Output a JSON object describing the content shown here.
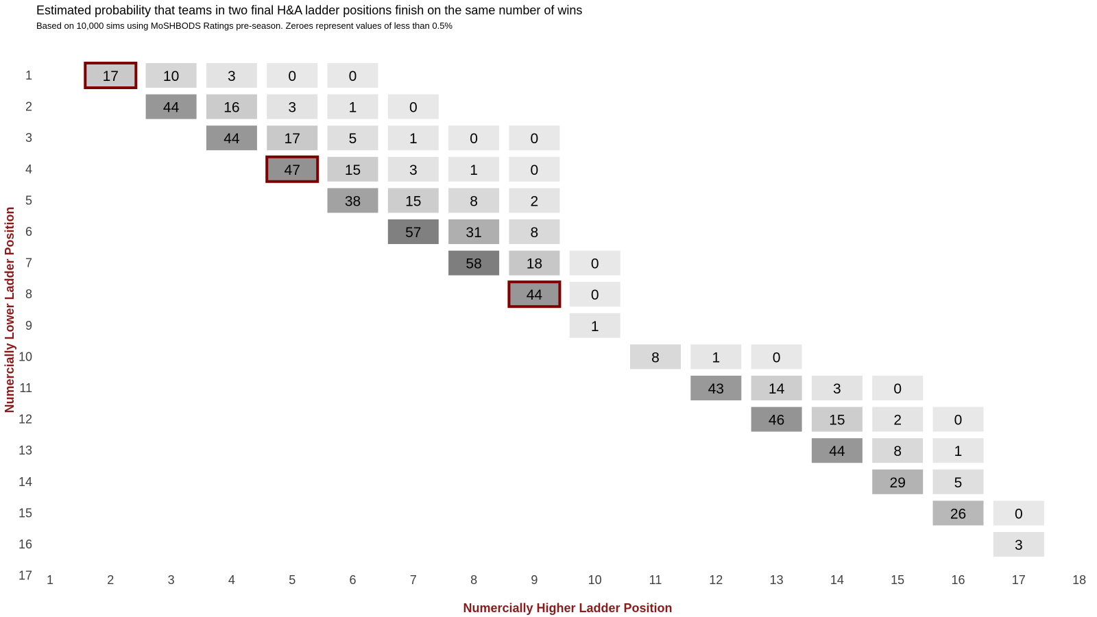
{
  "chart_data": {
    "type": "heatmap",
    "title": "Estimated probability that teams in two final H&A ladder positions finish on the same number of wins",
    "subtitle": "Based on 10,000 sims using MoSHBODS Ratings pre-season. Zeroes represent values of less than 0.5%",
    "xlabel": "Numercially Higher Ladder Position",
    "ylabel": "Numercially Lower Ladder Position",
    "x_ticks": [
      1,
      2,
      3,
      4,
      5,
      6,
      7,
      8,
      9,
      10,
      11,
      12,
      13,
      14,
      15,
      16,
      17,
      18
    ],
    "y_ticks": [
      1,
      2,
      3,
      4,
      5,
      6,
      7,
      8,
      9,
      10,
      11,
      12,
      13,
      14,
      15,
      16,
      17
    ],
    "xlim": [
      1,
      18
    ],
    "ylim": [
      1,
      17
    ],
    "y_inverted": true,
    "value_unit": "%",
    "grid": false,
    "highlight_color": "#7f0000",
    "axis_label_color": "#8b1a1a",
    "cells": [
      {
        "x": 2,
        "y": 1,
        "v": 17,
        "highlight": true
      },
      {
        "x": 3,
        "y": 1,
        "v": 10
      },
      {
        "x": 4,
        "y": 1,
        "v": 3
      },
      {
        "x": 5,
        "y": 1,
        "v": 0
      },
      {
        "x": 6,
        "y": 1,
        "v": 0
      },
      {
        "x": 3,
        "y": 2,
        "v": 44
      },
      {
        "x": 4,
        "y": 2,
        "v": 16
      },
      {
        "x": 5,
        "y": 2,
        "v": 3
      },
      {
        "x": 6,
        "y": 2,
        "v": 1
      },
      {
        "x": 7,
        "y": 2,
        "v": 0
      },
      {
        "x": 4,
        "y": 3,
        "v": 44
      },
      {
        "x": 5,
        "y": 3,
        "v": 17
      },
      {
        "x": 6,
        "y": 3,
        "v": 5
      },
      {
        "x": 7,
        "y": 3,
        "v": 1
      },
      {
        "x": 8,
        "y": 3,
        "v": 0
      },
      {
        "x": 9,
        "y": 3,
        "v": 0
      },
      {
        "x": 5,
        "y": 4,
        "v": 47,
        "highlight": true
      },
      {
        "x": 6,
        "y": 4,
        "v": 15
      },
      {
        "x": 7,
        "y": 4,
        "v": 3
      },
      {
        "x": 8,
        "y": 4,
        "v": 1
      },
      {
        "x": 9,
        "y": 4,
        "v": 0
      },
      {
        "x": 6,
        "y": 5,
        "v": 38
      },
      {
        "x": 7,
        "y": 5,
        "v": 15
      },
      {
        "x": 8,
        "y": 5,
        "v": 8
      },
      {
        "x": 9,
        "y": 5,
        "v": 2
      },
      {
        "x": 7,
        "y": 6,
        "v": 57
      },
      {
        "x": 8,
        "y": 6,
        "v": 31
      },
      {
        "x": 9,
        "y": 6,
        "v": 8
      },
      {
        "x": 8,
        "y": 7,
        "v": 58
      },
      {
        "x": 9,
        "y": 7,
        "v": 18
      },
      {
        "x": 10,
        "y": 7,
        "v": 0
      },
      {
        "x": 9,
        "y": 8,
        "v": 44,
        "highlight": true
      },
      {
        "x": 10,
        "y": 8,
        "v": 0
      },
      {
        "x": 10,
        "y": 9,
        "v": 1
      },
      {
        "x": 11,
        "y": 10,
        "v": 8
      },
      {
        "x": 12,
        "y": 10,
        "v": 1
      },
      {
        "x": 13,
        "y": 10,
        "v": 0
      },
      {
        "x": 12,
        "y": 11,
        "v": 43
      },
      {
        "x": 13,
        "y": 11,
        "v": 14
      },
      {
        "x": 14,
        "y": 11,
        "v": 3
      },
      {
        "x": 15,
        "y": 11,
        "v": 0
      },
      {
        "x": 13,
        "y": 12,
        "v": 46
      },
      {
        "x": 14,
        "y": 12,
        "v": 15
      },
      {
        "x": 15,
        "y": 12,
        "v": 2
      },
      {
        "x": 16,
        "y": 12,
        "v": 0
      },
      {
        "x": 14,
        "y": 13,
        "v": 44
      },
      {
        "x": 15,
        "y": 13,
        "v": 8
      },
      {
        "x": 16,
        "y": 13,
        "v": 1
      },
      {
        "x": 15,
        "y": 14,
        "v": 29
      },
      {
        "x": 16,
        "y": 14,
        "v": 5
      },
      {
        "x": 16,
        "y": 15,
        "v": 26
      },
      {
        "x": 17,
        "y": 15,
        "v": 0
      },
      {
        "x": 17,
        "y": 16,
        "v": 3
      }
    ]
  }
}
